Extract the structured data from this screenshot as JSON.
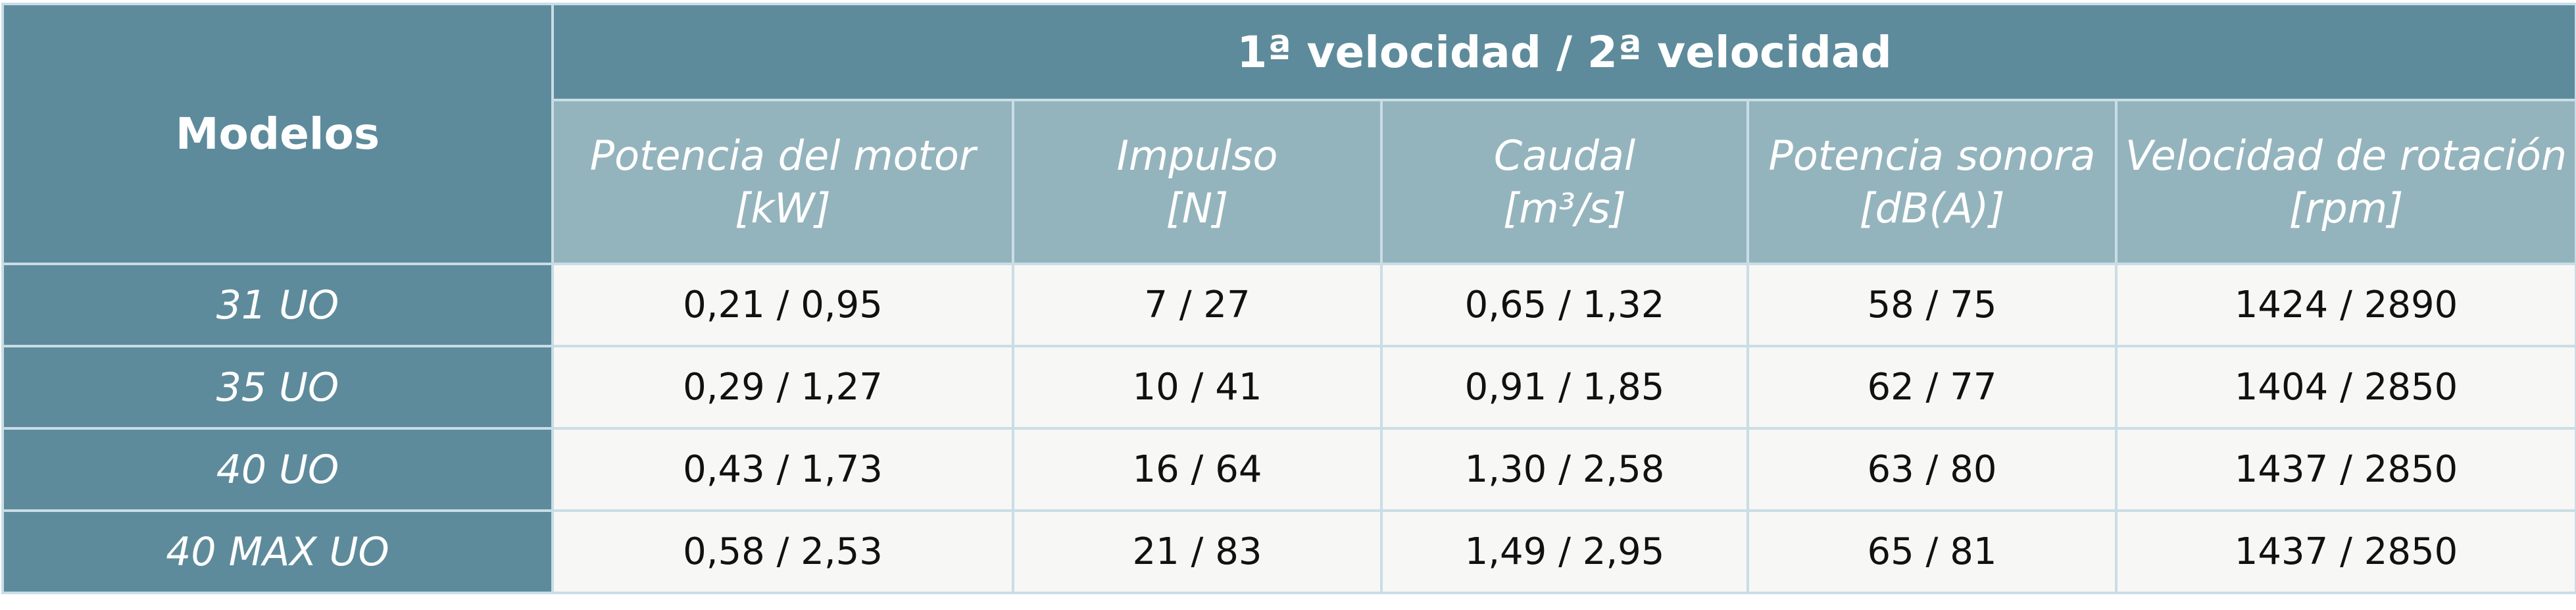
{
  "table": {
    "row_header_title": "Modelos",
    "group_title": "1ª velocidad / 2ª velocidad",
    "columns": [
      {
        "name": "Potencia del motor",
        "unit": "[kW]"
      },
      {
        "name": "Impulso",
        "unit": "[N]"
      },
      {
        "name": "Caudal",
        "unit": "[m³/s]"
      },
      {
        "name": "Potencia sonora",
        "unit": "[dB(A)]"
      },
      {
        "name": "Velocidad de rotación",
        "unit": "[rpm]"
      }
    ],
    "rows": [
      [
        "31 UO",
        "0,21 / 0,95",
        "7 / 27",
        "0,65 / 1,32",
        "58 / 75",
        "1424 / 2890"
      ],
      [
        "35 UO",
        "0,29 / 1,27",
        "10 / 41",
        "0,91 / 1,85",
        "62 / 77",
        "1404 / 2850"
      ],
      [
        "40 UO",
        "0,43 / 1,73",
        "16 / 64",
        "1,30 / 2,58",
        "63 / 80",
        "1437 / 2850"
      ],
      [
        "40 MAX UO",
        "0,58 / 2,53",
        "21 / 83",
        "1,49 / 2,95",
        "65 / 81",
        "1437 / 2850"
      ]
    ]
  }
}
